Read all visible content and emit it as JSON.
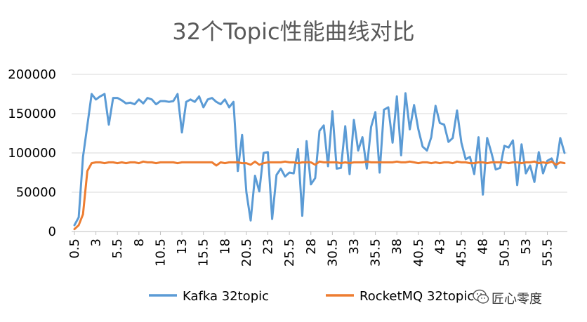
{
  "chart_data": {
    "type": "line",
    "title": "32个Topic性能曲线对比",
    "xlabel": "",
    "ylabel": "",
    "ylim": [
      0,
      200000
    ],
    "yticks": [
      0,
      50000,
      100000,
      150000,
      200000
    ],
    "xtick_labels": [
      "0.5",
      "3",
      "5.5",
      "8",
      "10.5",
      "13",
      "15.5",
      "18",
      "20.5",
      "23",
      "25.5",
      "28",
      "30.5",
      "33",
      "35.5",
      "38",
      "40.5",
      "43",
      "45.5",
      "48",
      "50.5",
      "53",
      "55.5"
    ],
    "grid": true,
    "legend": "bottom",
    "series": [
      {
        "name": "Kafka 32topic",
        "color": "#5B9BD5",
        "values": [
          8000,
          18000,
          95000,
          135000,
          175000,
          168000,
          172000,
          175000,
          136000,
          170000,
          170000,
          167000,
          163000,
          164000,
          162000,
          168000,
          163000,
          170000,
          168000,
          162000,
          166000,
          166000,
          165000,
          166000,
          175000,
          126000,
          165000,
          168000,
          165000,
          172000,
          158000,
          168000,
          170000,
          165000,
          162000,
          168000,
          158000,
          165000,
          77000,
          123000,
          50000,
          14000,
          71000,
          51000,
          100000,
          101000,
          16000,
          72000,
          80000,
          70000,
          75000,
          74000,
          105000,
          20000,
          115000,
          60000,
          68000,
          128000,
          135000,
          83000,
          153000,
          80000,
          81000,
          134000,
          73000,
          142000,
          103000,
          120000,
          80000,
          133000,
          152000,
          75000,
          155000,
          158000,
          113000,
          172000,
          97000,
          176000,
          130000,
          161000,
          130000,
          108000,
          103000,
          120000,
          160000,
          138000,
          136000,
          114000,
          119000,
          154000,
          113000,
          92000,
          95000,
          73000,
          120000,
          47000,
          119000,
          100000,
          79000,
          81000,
          109000,
          107000,
          116000,
          59000,
          111000,
          74000,
          84000,
          63000,
          101000,
          74000,
          90000,
          93000,
          81000,
          119000,
          100000
        ]
      },
      {
        "name": "RocketMQ 32topic",
        "color": "#ED7D31",
        "values": [
          3000,
          8000,
          22000,
          77000,
          87000,
          88000,
          88000,
          87000,
          88000,
          88000,
          87000,
          88000,
          87000,
          88000,
          88000,
          87000,
          89000,
          88000,
          88000,
          87000,
          88000,
          88000,
          88000,
          88000,
          87000,
          88000,
          88000,
          88000,
          88000,
          88000,
          88000,
          88000,
          88000,
          84000,
          88000,
          87000,
          88000,
          88000,
          88000,
          87000,
          87000,
          85000,
          89000,
          85000,
          87000,
          88000,
          88000,
          88000,
          88000,
          89000,
          88000,
          88000,
          87000,
          88000,
          88000,
          88000,
          85000,
          89000,
          88000,
          88000,
          88000,
          88000,
          87000,
          88000,
          87000,
          88000,
          88000,
          88000,
          89000,
          88000,
          88000,
          88000,
          88000,
          88000,
          88000,
          89000,
          88000,
          88000,
          89000,
          88000,
          87000,
          88000,
          88000,
          87000,
          88000,
          87000,
          88000,
          88000,
          87000,
          89000,
          88000,
          88000,
          87000,
          87000,
          88000,
          88000,
          87000,
          88000,
          88000,
          88000,
          88000,
          87000,
          88000,
          88000,
          87000,
          88000,
          88000,
          89000,
          87000,
          88000,
          87000,
          89000,
          85000,
          88000,
          87000
        ]
      }
    ]
  },
  "watermark": {
    "text": "匠心零度",
    "icon": "wechat-icon"
  }
}
